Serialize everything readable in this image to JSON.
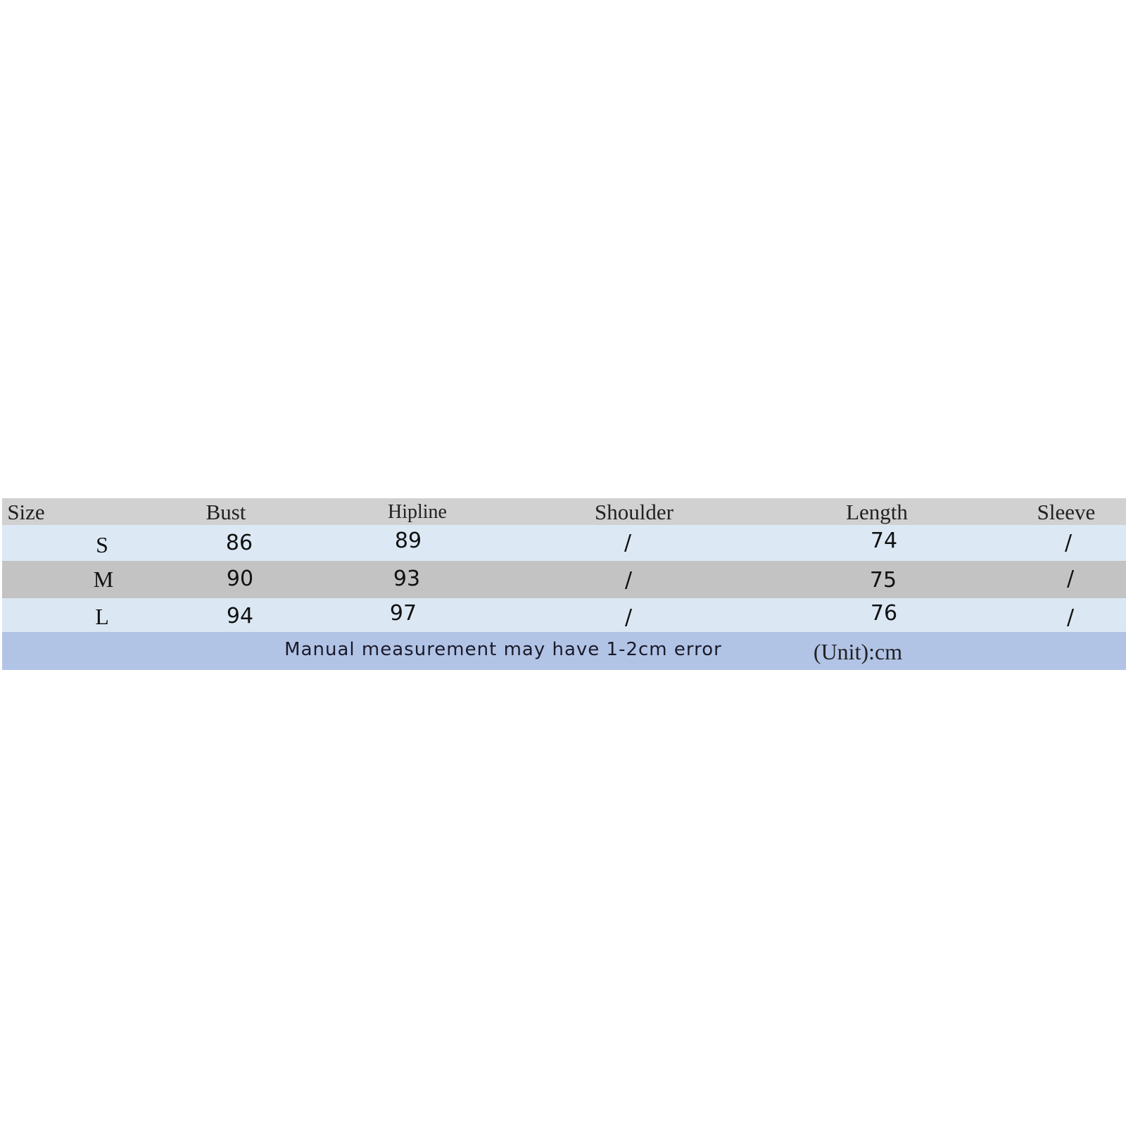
{
  "table": {
    "headers": [
      "Size",
      "Bust",
      "Hipline",
      "Shoulder",
      "Length",
      "Sleeve"
    ],
    "rows": [
      {
        "size": "S",
        "bust": "86",
        "hipline": "89",
        "shoulder": "/",
        "length": "74",
        "sleeve": "/"
      },
      {
        "size": "M",
        "bust": "90",
        "hipline": "93",
        "shoulder": "/",
        "length": "75",
        "sleeve": "/"
      },
      {
        "size": "L",
        "bust": "94",
        "hipline": "97",
        "shoulder": "/",
        "length": "76",
        "sleeve": "/"
      }
    ],
    "note": "Manual measurement may have 1-2cm error",
    "unit": "(Unit):cm"
  },
  "colors": {
    "header": "#d2d1d2",
    "row_light": "#dce9f5",
    "row_gray": "#c3c3c3",
    "footer": "#b2c4e6"
  }
}
